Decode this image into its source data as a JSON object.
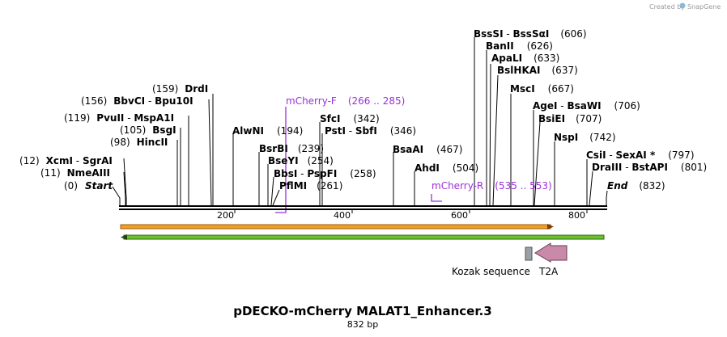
{
  "brand": {
    "created_by": "Created by",
    "name": "SnapGene"
  },
  "map": {
    "title": "pDECKO-mCherry MALAT1_Enhancer.3",
    "length": "832 bp",
    "ticks": [
      "200",
      "400",
      "600",
      "800"
    ]
  },
  "sites": [
    {
      "a": "(0)",
      "b": "Start"
    },
    {
      "a": "(11)",
      "b": "NmeAIII"
    },
    {
      "a": "(12)",
      "b": "XcmI",
      "c": " - ",
      "d": "SgrAI"
    },
    {
      "a": "(98)",
      "b": "HincII"
    },
    {
      "a": "(105)",
      "b": "BsgI"
    },
    {
      "a": "(119)",
      "b": "PvuII",
      "c": " - ",
      "d": "MspA1I"
    },
    {
      "a": "(156)",
      "b": "BbvCI",
      "c": " - ",
      "d": "Bpu10I"
    },
    {
      "a": "(159)",
      "b": "DrdI"
    },
    {
      "b": "AlwNI",
      "a": "(194)"
    },
    {
      "b": "BsrBI",
      "a": "(239)"
    },
    {
      "b": "BseYI",
      "a": "(254)"
    },
    {
      "b": "BbsI",
      "c": " - ",
      "d": "PspFI",
      "a": "(258)"
    },
    {
      "b": "PflMI",
      "a": "(261)"
    },
    {
      "b": "SfcI",
      "a": "(342)"
    },
    {
      "b": "PstI",
      "c": " - ",
      "d": "SbfI",
      "a": "(346)"
    },
    {
      "b": "BsaAI",
      "a": "(467)"
    },
    {
      "b": "AhdI",
      "a": "(504)"
    },
    {
      "b": "BssSI",
      "c": " - ",
      "d": "BssSαI",
      "a": "(606)"
    },
    {
      "b": "BanII",
      "a": "(626)"
    },
    {
      "b": "ApaLI",
      "a": "(633)"
    },
    {
      "b": "BslHKAI",
      "a": "(637)"
    },
    {
      "b": "MscI",
      "a": "(667)"
    },
    {
      "b": "AgeI",
      "c": " - ",
      "d": "BsaWI",
      "a": "(706)"
    },
    {
      "b": "BsiEI",
      "a": "(707)"
    },
    {
      "b": "NspI",
      "a": "(742)"
    },
    {
      "b": "CsiI",
      "c": " - ",
      "d": "SexAI *",
      "a": "(797)"
    },
    {
      "b": "DraIII",
      "c": " - ",
      "d": "BstAPI",
      "a": "(801)"
    },
    {
      "b": "End",
      "a": "(832)"
    }
  ],
  "primers": [
    {
      "name": "mCherry-F",
      "range": "(266 .. 285)"
    },
    {
      "name": "mCherry-R",
      "range": "(535 .. 553)"
    }
  ],
  "features": {
    "kozak": "Kozak sequence",
    "t2a": "T2A"
  },
  "colors": {
    "primer": "#9b30d9",
    "orf_orange": "#f0a020",
    "orf_green": "#6cc030",
    "t2a_fill": "#c88aa8",
    "kozak_fill": "#9aa0a8"
  }
}
